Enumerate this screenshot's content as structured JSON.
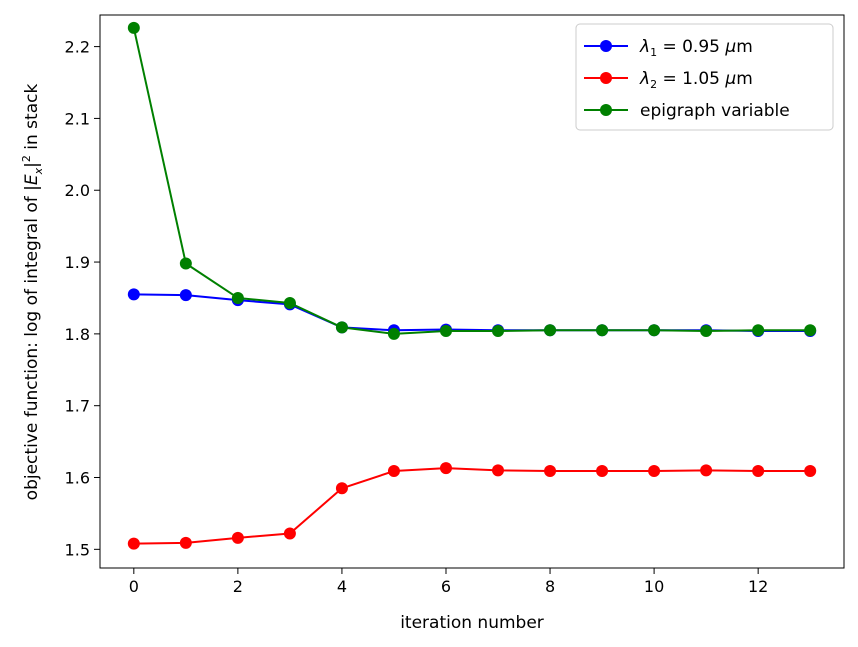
{
  "chart_data": {
    "type": "line",
    "xlabel": "iteration number",
    "ylabel_parts": [
      "objective function: log of integral of |",
      "E",
      "x",
      "|",
      "2",
      " in stack"
    ],
    "x": [
      0,
      1,
      2,
      3,
      4,
      5,
      6,
      7,
      8,
      9,
      10,
      11,
      12,
      13
    ],
    "xlim": [
      -0.65,
      13.65
    ],
    "ylim": [
      1.474,
      2.244
    ],
    "xticks": [
      0,
      2,
      4,
      6,
      8,
      10,
      12
    ],
    "xtick_labels": [
      "0",
      "2",
      "4",
      "6",
      "8",
      "10",
      "12"
    ],
    "yticks": [
      1.5,
      1.6,
      1.7,
      1.8,
      1.9,
      2.0,
      2.1,
      2.2
    ],
    "ytick_labels": [
      "1.5",
      "1.6",
      "1.7",
      "1.8",
      "1.9",
      "2.0",
      "2.1",
      "2.2"
    ],
    "grid": false,
    "legend_position": "top-right",
    "series": [
      {
        "name": "λ1 = 0.95 μm",
        "legend_parts": [
          "λ",
          "1",
          " = 0.95 ",
          "μ",
          "m"
        ],
        "color": "#0000ff",
        "values": [
          1.855,
          1.854,
          1.847,
          1.841,
          1.809,
          1.805,
          1.806,
          1.805,
          1.805,
          1.805,
          1.805,
          1.805,
          1.804,
          1.804
        ]
      },
      {
        "name": "λ2 = 1.05 μm",
        "legend_parts": [
          "λ",
          "2",
          " = 1.05 ",
          "μ",
          "m"
        ],
        "color": "#ff0000",
        "values": [
          1.508,
          1.509,
          1.516,
          1.522,
          1.585,
          1.609,
          1.613,
          1.61,
          1.609,
          1.609,
          1.609,
          1.61,
          1.609,
          1.609
        ]
      },
      {
        "name": "epigraph variable",
        "legend_parts": [
          "epigraph variable"
        ],
        "color": "#008000",
        "values": [
          2.226,
          1.898,
          1.85,
          1.843,
          1.809,
          1.8,
          1.804,
          1.804,
          1.805,
          1.805,
          1.805,
          1.804,
          1.805,
          1.805
        ]
      }
    ]
  }
}
